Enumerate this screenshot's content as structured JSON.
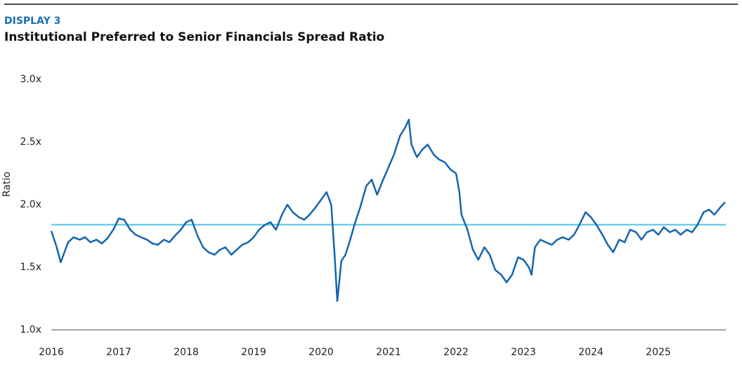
{
  "chart_data": {
    "type": "line",
    "label": "DISPLAY 3",
    "title": "Institutional Preferred to Senior Financials Spread Ratio",
    "ylabel": "Ratio",
    "xlim": [
      2016,
      2026
    ],
    "xticks": [
      2016,
      2017,
      2018,
      2019,
      2020,
      2021,
      2022,
      2023,
      2024,
      2025
    ],
    "ylim": [
      1.0,
      3.0
    ],
    "yticks": [
      {
        "value": 1.0,
        "label": "1.0x"
      },
      {
        "value": 1.5,
        "label": "1.5x"
      },
      {
        "value": 2.0,
        "label": "2.0x"
      },
      {
        "value": 2.5,
        "label": "2.5x"
      },
      {
        "value": 3.0,
        "label": "3.0x"
      }
    ],
    "grid": false,
    "reference_line": {
      "value": 1.84,
      "color": "#4cc3e6"
    },
    "series": [
      {
        "color": "#1565ae",
        "x": [
          2016.0,
          2016.08,
          2016.14,
          2016.25,
          2016.33,
          2016.42,
          2016.5,
          2016.58,
          2016.67,
          2016.75,
          2016.83,
          2016.92,
          2017.0,
          2017.08,
          2017.17,
          2017.25,
          2017.33,
          2017.42,
          2017.5,
          2017.58,
          2017.67,
          2017.75,
          2017.83,
          2017.92,
          2018.0,
          2018.08,
          2018.17,
          2018.25,
          2018.33,
          2018.42,
          2018.5,
          2018.58,
          2018.67,
          2018.75,
          2018.83,
          2018.92,
          2019.0,
          2019.08,
          2019.17,
          2019.25,
          2019.33,
          2019.42,
          2019.5,
          2019.58,
          2019.67,
          2019.75,
          2019.83,
          2019.92,
          2020.0,
          2020.08,
          2020.15,
          2020.2,
          2020.24,
          2020.3,
          2020.36,
          2020.42,
          2020.5,
          2020.58,
          2020.67,
          2020.75,
          2020.83,
          2020.92,
          2021.0,
          2021.08,
          2021.17,
          2021.25,
          2021.3,
          2021.34,
          2021.42,
          2021.5,
          2021.58,
          2021.67,
          2021.75,
          2021.83,
          2021.92,
          2022.0,
          2022.05,
          2022.08,
          2022.17,
          2022.25,
          2022.33,
          2022.42,
          2022.5,
          2022.58,
          2022.67,
          2022.75,
          2022.83,
          2022.92,
          2023.0,
          2023.08,
          2023.12,
          2023.17,
          2023.25,
          2023.33,
          2023.42,
          2023.5,
          2023.58,
          2023.67,
          2023.75,
          2023.83,
          2023.92,
          2024.0,
          2024.08,
          2024.17,
          2024.25,
          2024.33,
          2024.42,
          2024.5,
          2024.58,
          2024.67,
          2024.75,
          2024.83,
          2024.92,
          2025.0,
          2025.08,
          2025.17,
          2025.25,
          2025.33,
          2025.42,
          2025.5,
          2025.58,
          2025.67,
          2025.75,
          2025.83,
          2025.92,
          2025.99
        ],
        "values": [
          1.79,
          1.66,
          1.54,
          1.7,
          1.74,
          1.72,
          1.74,
          1.7,
          1.72,
          1.69,
          1.73,
          1.8,
          1.89,
          1.88,
          1.8,
          1.76,
          1.74,
          1.72,
          1.69,
          1.68,
          1.72,
          1.7,
          1.75,
          1.8,
          1.86,
          1.88,
          1.75,
          1.66,
          1.62,
          1.6,
          1.64,
          1.66,
          1.6,
          1.64,
          1.68,
          1.7,
          1.74,
          1.8,
          1.84,
          1.86,
          1.8,
          1.92,
          2.0,
          1.94,
          1.9,
          1.88,
          1.92,
          1.98,
          2.04,
          2.1,
          2.0,
          1.6,
          1.23,
          1.55,
          1.6,
          1.7,
          1.85,
          1.98,
          2.15,
          2.2,
          2.08,
          2.2,
          2.3,
          2.4,
          2.55,
          2.62,
          2.68,
          2.48,
          2.38,
          2.44,
          2.48,
          2.4,
          2.36,
          2.34,
          2.28,
          2.25,
          2.1,
          1.92,
          1.8,
          1.64,
          1.56,
          1.66,
          1.6,
          1.48,
          1.44,
          1.38,
          1.44,
          1.58,
          1.56,
          1.5,
          1.44,
          1.66,
          1.72,
          1.7,
          1.68,
          1.72,
          1.74,
          1.72,
          1.76,
          1.84,
          1.94,
          1.9,
          1.84,
          1.76,
          1.68,
          1.62,
          1.72,
          1.7,
          1.8,
          1.78,
          1.72,
          1.78,
          1.8,
          1.76,
          1.82,
          1.78,
          1.8,
          1.76,
          1.8,
          1.78,
          1.84,
          1.94,
          1.96,
          1.92,
          1.98,
          2.02
        ]
      }
    ]
  }
}
